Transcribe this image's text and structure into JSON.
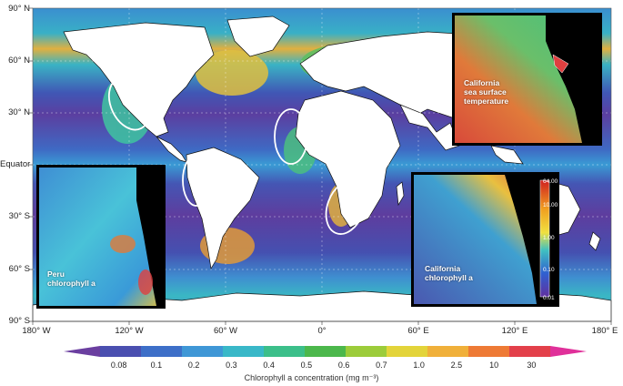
{
  "map": {
    "lat_labels": [
      "90° N",
      "60° N",
      "30° N",
      "Equator",
      "30° S",
      "60° S",
      "90° S"
    ],
    "lon_labels": [
      "180° W",
      "120° W",
      "60° W",
      "0°",
      "60° E",
      "120° E",
      "180° E"
    ]
  },
  "colorbar": {
    "ticks": [
      "0.08",
      "0.1",
      "0.2",
      "0.3",
      "0.4",
      "0.5",
      "0.6",
      "0.7",
      "1.0",
      "2.5",
      "10",
      "30"
    ],
    "colors": [
      "#6b3fa0",
      "#4a4fb0",
      "#3d6fc8",
      "#3f97d6",
      "#39b8c8",
      "#3cbf8a",
      "#4cb84c",
      "#9ccc3a",
      "#e3d43a",
      "#f0b03a",
      "#ee7a35",
      "#e3404a",
      "#e0309a"
    ],
    "title": "Chlorophyll a concentration (mg m⁻³)"
  },
  "insets": {
    "california_sst": {
      "label_line1": "California",
      "label_line2": "sea surface",
      "label_line3": "temperature"
    },
    "peru_chl": {
      "label_line1": "Peru",
      "label_line2": "chlorophyll a"
    },
    "california_chl": {
      "label_line1": "California",
      "label_line2": "chlorophyll a",
      "scale_ticks": [
        "64.00",
        "10.00",
        "1.00",
        "0.10",
        "0.01"
      ]
    }
  }
}
